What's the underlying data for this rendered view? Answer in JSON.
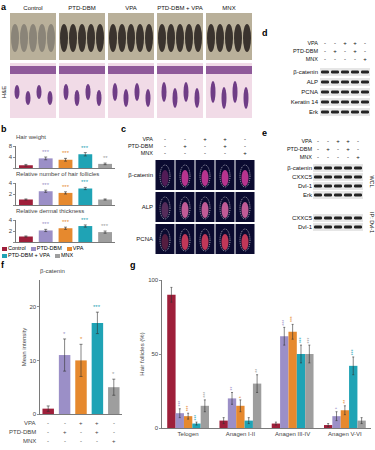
{
  "chart_data": [
    {
      "type": "bar",
      "title": "Hair weight",
      "categories": [
        "Control",
        "PTD-DBM",
        "VPA",
        "PTD-DBM + VPA",
        "MNX"
      ],
      "values": [
        1,
        3.5,
        3,
        5,
        1.5
      ],
      "errors": [
        0.3,
        0.5,
        0.5,
        0.6,
        0.3
      ],
      "annotations": [
        null,
        "***",
        "***",
        "***",
        "**"
      ],
      "colors": [
        "#9e1f3a",
        "#9b8fc7",
        "#e6892e",
        "#1fa3b5",
        "#9e9e9e"
      ],
      "ylim": [
        0,
        8
      ],
      "yticks": [
        0,
        4,
        8
      ],
      "tick_labels": "y"
    },
    {
      "type": "bar",
      "title": "Relative number of hair follicles",
      "categories": [
        "Control",
        "PTD-DBM",
        "VPA",
        "PTD-DBM + VPA",
        "MNX"
      ],
      "values": [
        1,
        2.5,
        2.2,
        3,
        1
      ],
      "errors": [
        0.1,
        0.2,
        0.2,
        0.2,
        0.1
      ],
      "annotations": [
        null,
        "***",
        "***",
        "***",
        null
      ],
      "colors": [
        "#9e1f3a",
        "#9b8fc7",
        "#e6892e",
        "#1fa3b5",
        "#9e9e9e"
      ],
      "ylim": [
        0,
        4
      ],
      "yticks": [
        0,
        2,
        4
      ],
      "tick_labels": "y"
    },
    {
      "type": "bar",
      "title": "Relative dermal thickness",
      "categories": [
        "Control",
        "PTD-DBM",
        "VPA",
        "PTD-DBM + VPA",
        "MNX"
      ],
      "values": [
        1,
        2.1,
        2.5,
        2.9,
        1.8
      ],
      "errors": [
        0.1,
        0.2,
        0.2,
        0.2,
        0.2
      ],
      "annotations": [
        null,
        "***",
        "***",
        "***",
        "***"
      ],
      "colors": [
        "#9e1f3a",
        "#9b8fc7",
        "#e6892e",
        "#1fa3b5",
        "#9e9e9e"
      ],
      "ylim": [
        0,
        4
      ],
      "yticks": [
        0,
        2,
        4
      ],
      "tick_labels": "y"
    },
    {
      "type": "bar",
      "title": "β-catenin",
      "y_label": "Mean intensity",
      "categories": [
        "Control",
        "PTD-DBM",
        "VPA",
        "PTD-DBM + VPA",
        "MNX"
      ],
      "values": [
        1,
        11,
        10,
        17,
        5
      ],
      "errors": [
        0.5,
        3,
        3,
        2,
        1.5
      ],
      "annotations": [
        null,
        "*",
        "*",
        "***",
        "*"
      ],
      "colors": [
        "#9e1f3a",
        "#9b8fc7",
        "#e6892e",
        "#1fa3b5",
        "#9e9e9e"
      ],
      "conditions": [
        {
          "name": "VPA",
          "signs": [
            "-",
            "-",
            "+",
            "+",
            "-"
          ]
        },
        {
          "name": "PTD-DBM",
          "signs": [
            "-",
            "+",
            "-",
            "+",
            "-"
          ]
        },
        {
          "name": "MNX",
          "signs": [
            "-",
            "-",
            "-",
            "-",
            "+"
          ]
        }
      ],
      "ylim": [
        0,
        25
      ],
      "yticks": [
        0,
        10,
        20
      ],
      "tick_labels": "y"
    },
    {
      "type": "grouped_bar",
      "y_label": "Hair follicles (%)",
      "categories": [
        "Telogen",
        "Anagen I-II",
        "Anagen III-IV",
        "Anagen V-VI"
      ],
      "series": [
        {
          "name": "Control",
          "color": "#9e1f3a",
          "values": [
            90,
            5,
            3,
            2
          ],
          "errors": [
            5,
            2,
            1,
            1
          ],
          "annotations": [
            null,
            null,
            null,
            null
          ]
        },
        {
          "name": "PTD-DBM",
          "color": "#9b8fc7",
          "values": [
            10,
            20,
            62,
            8
          ],
          "errors": [
            3,
            4,
            6,
            3
          ],
          "annotations": [
            "***",
            "**",
            "***",
            "*"
          ]
        },
        {
          "name": "VPA",
          "color": "#e6892e",
          "values": [
            8,
            15,
            65,
            12
          ],
          "errors": [
            2,
            4,
            5,
            3
          ],
          "annotations": [
            "***",
            "*",
            "***",
            "**"
          ]
        },
        {
          "name": "PTD-DBM + VPA",
          "color": "#1fa3b5",
          "values": [
            3,
            5,
            50,
            42
          ],
          "errors": [
            1,
            2,
            6,
            6
          ],
          "annotations": [
            "***",
            null,
            "***",
            "***"
          ]
        },
        {
          "name": "MNX",
          "color": "#9e9e9e",
          "values": [
            15,
            30,
            50,
            5
          ],
          "errors": [
            4,
            6,
            6,
            2
          ],
          "annotations": [
            "***",
            "**",
            "***",
            null
          ]
        }
      ],
      "ylim": [
        0,
        100
      ],
      "yticks": [
        0,
        50,
        100
      ]
    }
  ],
  "panel_labels": [
    "a",
    "b",
    "c",
    "d",
    "e",
    "f",
    "g"
  ],
  "panels": {
    "a": {
      "groups": [
        "Control",
        "PTD-DBM",
        "VPA",
        "PTD-DBM + VPA",
        "MNX"
      ],
      "stain": "H&E"
    },
    "c": {
      "conditions": [
        {
          "name": "VPA",
          "signs": [
            "-",
            "-",
            "+",
            "+",
            "-"
          ]
        },
        {
          "name": "PTD-DBM",
          "signs": [
            "-",
            "+",
            "-",
            "+",
            "-"
          ]
        },
        {
          "name": "MNX",
          "signs": [
            "-",
            "-",
            "-",
            "-",
            "+"
          ]
        }
      ],
      "rows": [
        "β-catenin",
        "ALP",
        "PCNA"
      ]
    },
    "d": {
      "conditions": [
        {
          "name": "VPA",
          "signs": [
            "-",
            "-",
            "+",
            "+",
            "-"
          ]
        },
        {
          "name": "PTD-DBM",
          "signs": [
            "-",
            "+",
            "-",
            "+",
            "-"
          ]
        },
        {
          "name": "MNX",
          "signs": [
            "-",
            "-",
            "-",
            "-",
            "+"
          ]
        }
      ],
      "bands": [
        "β-catenin",
        "ALP",
        "PCNA",
        "Keratin 14",
        "Erk"
      ]
    },
    "e": {
      "conditions": [
        {
          "name": "VPA",
          "signs": [
            "-",
            "-",
            "+",
            "+",
            "-"
          ]
        },
        {
          "name": "PTD-DBM",
          "signs": [
            "-",
            "+",
            "-",
            "+",
            "-"
          ]
        },
        {
          "name": "MNX",
          "signs": [
            "-",
            "-",
            "-",
            "-",
            "+"
          ]
        }
      ],
      "groups": [
        {
          "name": "WCL",
          "bands": [
            "β-catenin",
            "CXXC5",
            "Dvl-1",
            "Erk"
          ]
        },
        {
          "name": "IP: Dvl-1",
          "bands": [
            "CXXC5",
            "Dvl-1"
          ]
        }
      ]
    }
  }
}
